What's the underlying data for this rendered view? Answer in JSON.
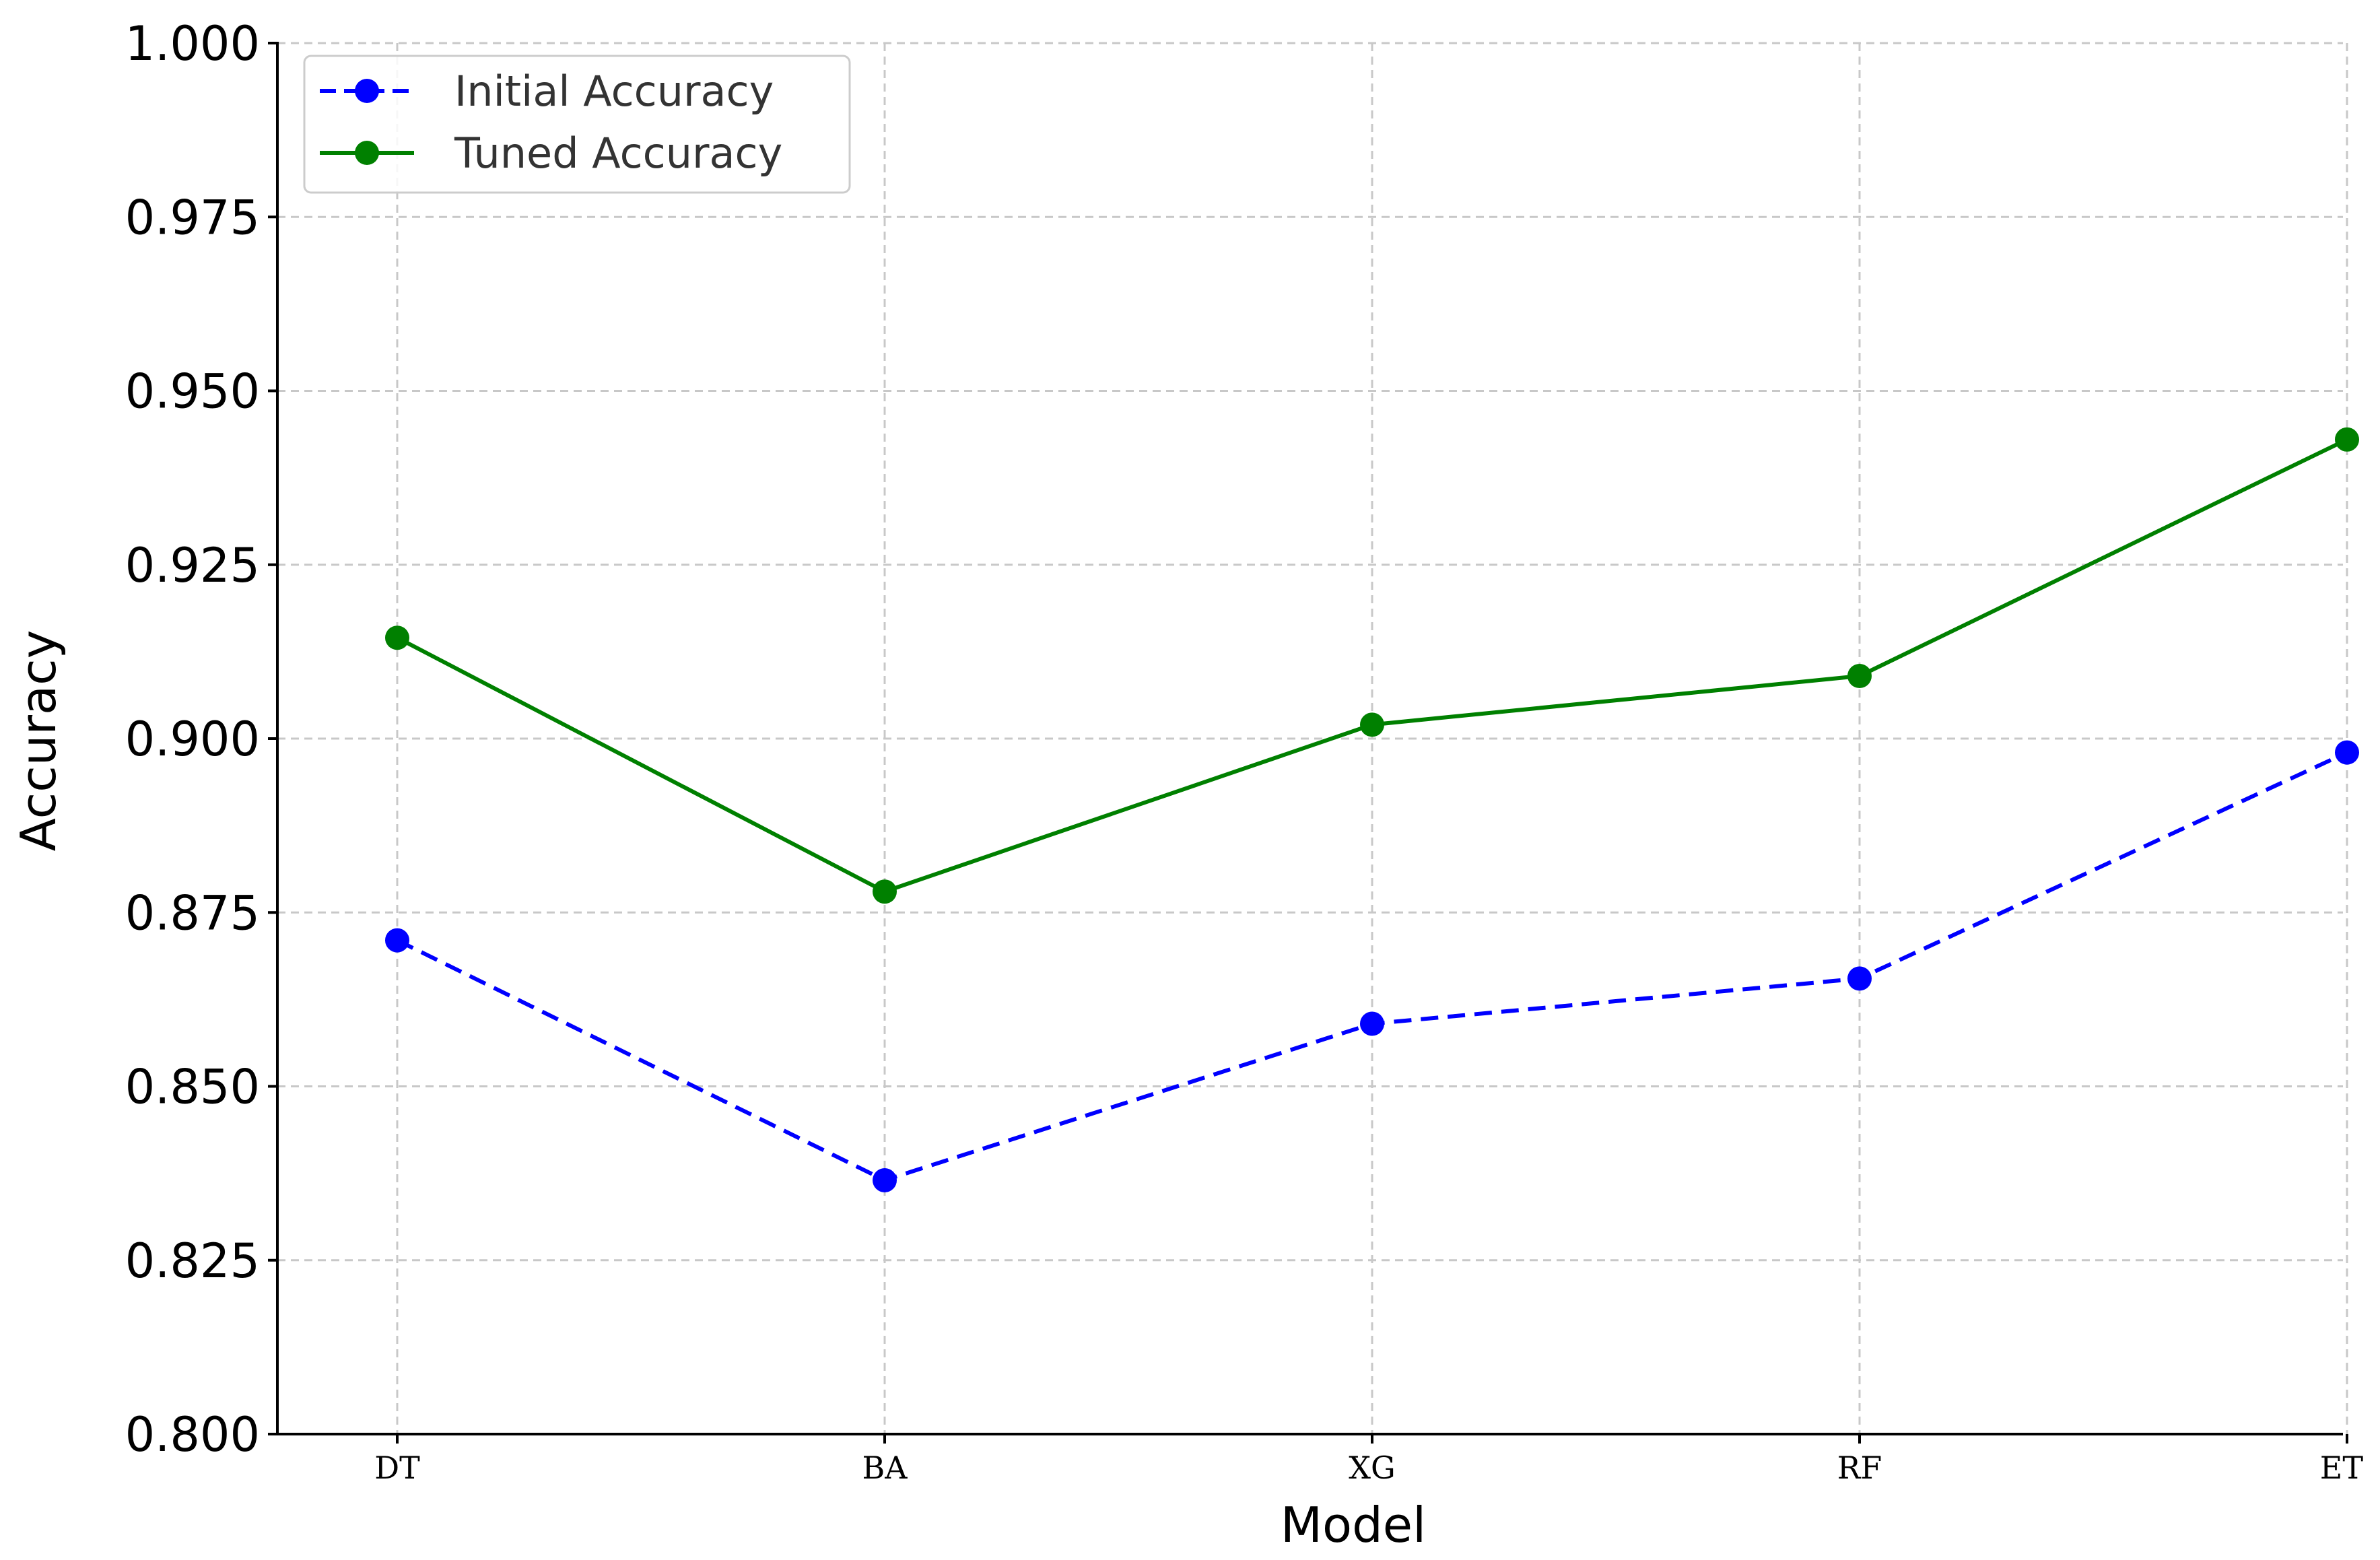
{
  "chart_data": {
    "type": "line",
    "title": "",
    "xlabel": "Model",
    "ylabel": "Accuracy",
    "categories": [
      "DT",
      "BA",
      "XG",
      "RF",
      "ET"
    ],
    "ylim": [
      0.8,
      1.0
    ],
    "yticks": [
      "0.800",
      "0.825",
      "0.850",
      "0.875",
      "0.900",
      "0.925",
      "0.950",
      "0.975",
      "1.000"
    ],
    "grid": true,
    "legend_position": "top-left",
    "series": [
      {
        "name": "Initial Accuracy",
        "values": [
          0.871,
          0.8365,
          0.859,
          0.8655,
          0.898
        ],
        "color": "#0000ff",
        "line_style": "dashed",
        "marker": "circle"
      },
      {
        "name": "Tuned Accuracy",
        "values": [
          0.9145,
          0.878,
          0.902,
          0.909,
          0.943
        ],
        "color": "#008000",
        "line_style": "solid",
        "marker": "circle"
      }
    ]
  }
}
